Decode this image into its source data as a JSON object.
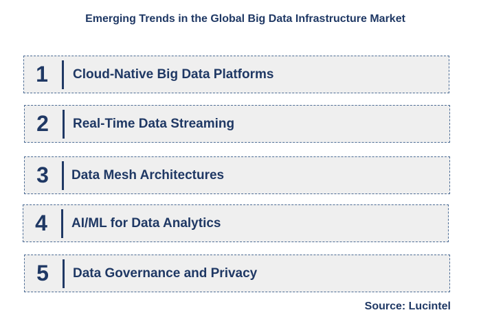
{
  "title": "Emerging Trends in the Global Big Data Infrastructure Market",
  "trends": [
    {
      "number": "1",
      "label": "Cloud-Native Big Data Platforms"
    },
    {
      "number": "2",
      "label": "Real-Time Data Streaming"
    },
    {
      "number": "3",
      "label": "Data Mesh Architectures"
    },
    {
      "number": "4",
      "label": "AI/ML for Data Analytics"
    },
    {
      "number": "5",
      "label": "Data Governance and Privacy"
    }
  ],
  "source": "Source: Lucintel",
  "colors": {
    "text": "#1f3864",
    "box_background": "#efefef",
    "box_border": "#4a6a93"
  }
}
